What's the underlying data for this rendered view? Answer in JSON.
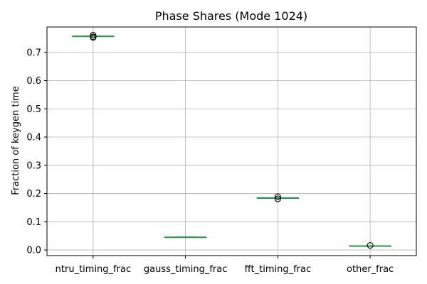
{
  "chart_data": {
    "type": "box",
    "title": "Phase Shares (Mode 1024)",
    "xlabel": "",
    "ylabel": "Fraction of keygen time",
    "ylim": [
      -0.02,
      0.79
    ],
    "yticks": [
      0.0,
      0.1,
      0.2,
      0.3,
      0.4,
      0.5,
      0.6,
      0.7
    ],
    "ytick_labels": [
      "0.0",
      "0.1",
      "0.2",
      "0.3",
      "0.4",
      "0.5",
      "0.6",
      "0.7"
    ],
    "grid": true,
    "categories": [
      "ntru_timing_frac",
      "gauss_timing_frac",
      "fft_timing_frac",
      "other_frac"
    ],
    "boxes": [
      {
        "whislo": 0.756,
        "q1": 0.756,
        "med": 0.757,
        "q3": 0.758,
        "whishi": 0.758,
        "fliers": [
          0.761,
          0.753,
          0.755
        ]
      },
      {
        "whislo": 0.045,
        "q1": 0.045,
        "med": 0.045,
        "q3": 0.046,
        "whishi": 0.046,
        "fliers": []
      },
      {
        "whislo": 0.184,
        "q1": 0.184,
        "med": 0.185,
        "q3": 0.185,
        "whishi": 0.185,
        "fliers": [
          0.189,
          0.181
        ]
      },
      {
        "whislo": 0.014,
        "q1": 0.014,
        "med": 0.014,
        "q3": 0.015,
        "whishi": 0.015,
        "fliers": [
          0.016
        ]
      }
    ],
    "colors": {
      "box": "#1f77b4",
      "median": "#2ca02c",
      "whisker": "#1f77b4",
      "grid": "#b0b0b0",
      "flier": "#000000"
    }
  }
}
